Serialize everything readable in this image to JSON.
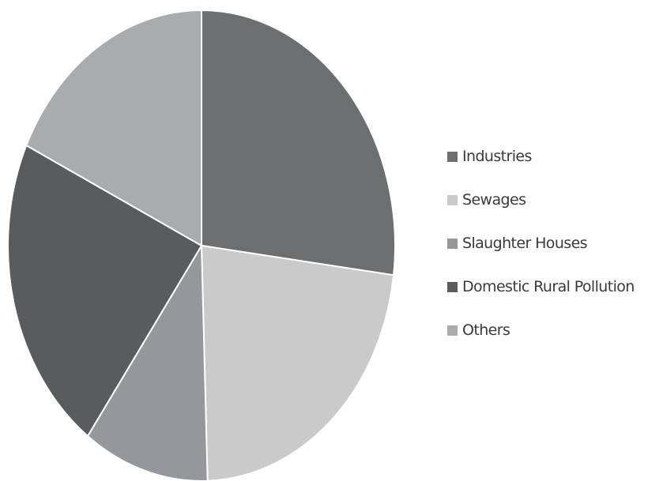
{
  "chart_data": {
    "type": "pie",
    "title": "",
    "legend_position": "right",
    "start_angle_deg": 0,
    "direction": "clockwise",
    "slices": [
      {
        "label": "Industries",
        "value": 27,
        "color": "#6d6e70"
      },
      {
        "label": "Sewages",
        "value": 22.5,
        "color": "#cacaca"
      },
      {
        "label": "Slaughter Houses",
        "value": 10.5,
        "color": "#96979a"
      },
      {
        "label": "Domestic Rural Pollution",
        "value": 22,
        "color": "#595b5d"
      },
      {
        "label": "Others",
        "value": 18,
        "color": "#aaabad"
      }
    ]
  }
}
